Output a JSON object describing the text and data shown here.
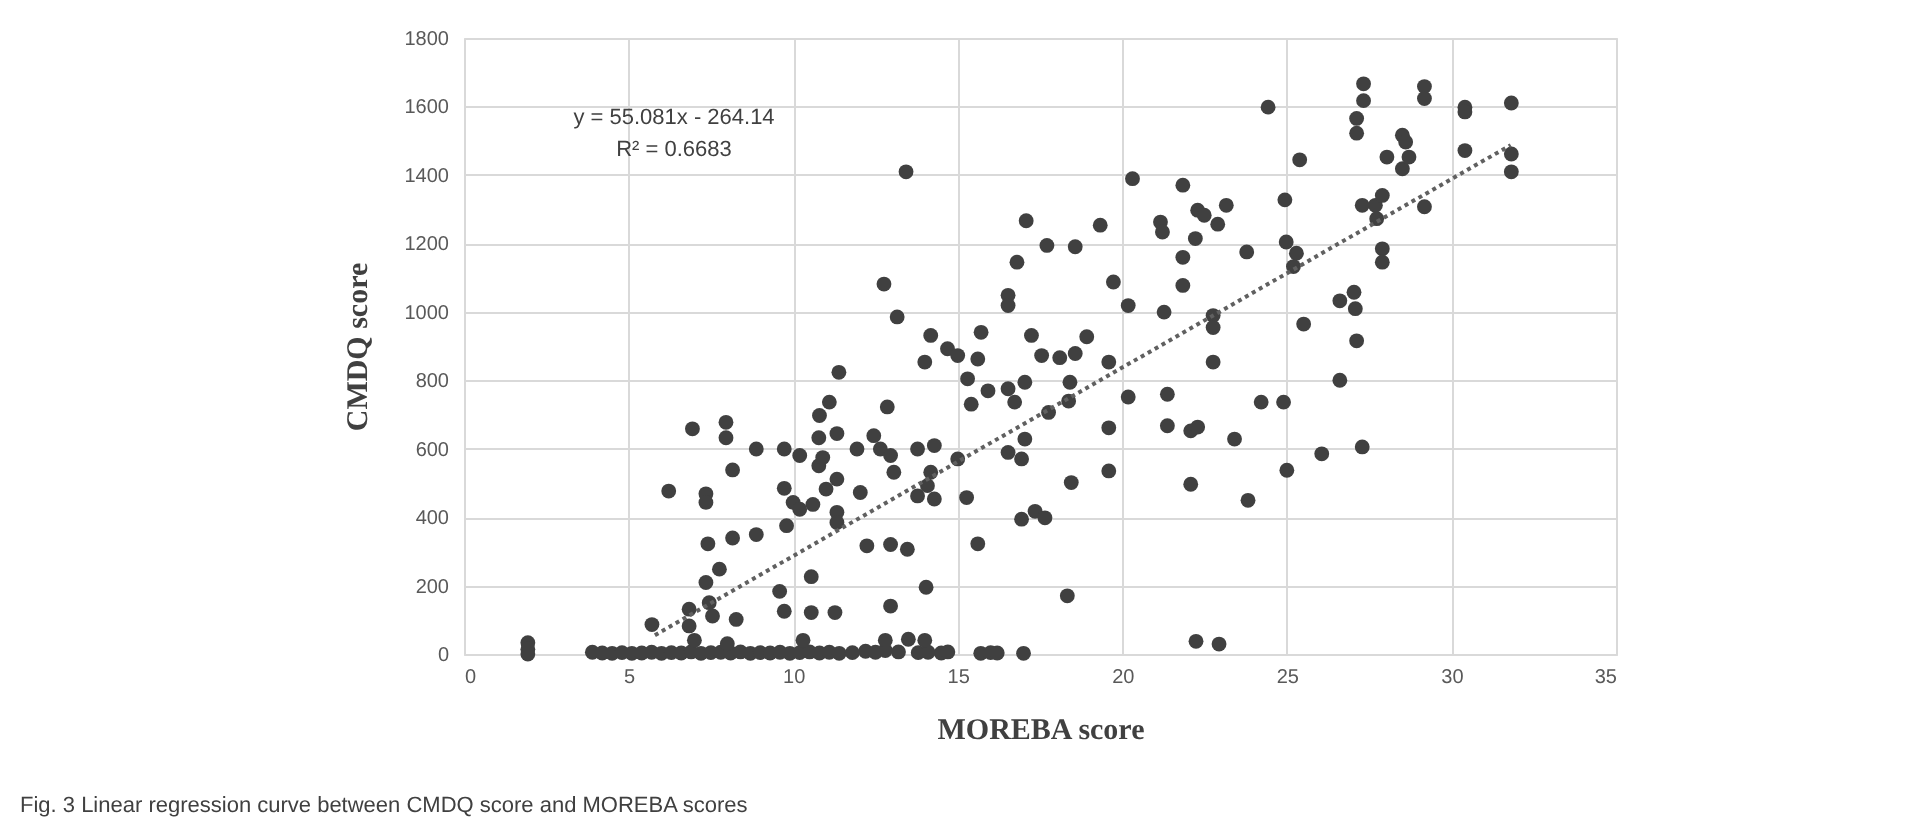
{
  "chart_data": {
    "type": "scatter",
    "xlabel": "MOREBA score",
    "ylabel": "CMDQ score",
    "xlim": [
      0,
      35
    ],
    "xticks": [
      0,
      5,
      10,
      15,
      20,
      25,
      30,
      35
    ],
    "ylim": [
      0,
      1800
    ],
    "yticks": [
      0,
      200,
      400,
      600,
      800,
      1000,
      1200,
      1400,
      1600,
      1800
    ],
    "grid": true,
    "marker": "circle",
    "annotations": [
      "y = 55.081x - 264.14",
      "R² = 0.6683",
      "Fig. 3  Linear regression curve between CMDQ score and MOREBA scores"
    ],
    "series": [
      {
        "type": "scatter",
        "color": "#404040",
        "x": [
          1.94,
          1.94,
          1.94,
          3.9,
          4.2,
          4.5,
          4.8,
          5.1,
          5.4,
          5.7,
          6.0,
          6.3,
          6.6,
          6.9,
          7.2,
          7.5,
          7.8,
          8.1,
          8.4,
          8.7,
          9.0,
          9.3,
          9.6,
          9.9,
          10.2,
          10.5,
          10.8,
          11.1,
          11.4,
          11.8,
          12.2,
          12.5,
          12.8,
          13.2,
          13.5,
          13.8,
          14.1,
          14.5,
          14.7,
          15.7,
          16.0,
          16.2,
          17.0,
          7.0,
          8.0,
          10.3,
          12.8,
          14.0,
          5.71,
          6.84,
          6.84,
          7.45,
          7.35,
          7.76,
          7.55,
          8.27,
          7.41,
          8.16,
          8.88,
          6.22,
          7.35,
          7.35,
          6.94,
          7.96,
          7.96,
          8.16,
          8.88,
          9.59,
          9.73,
          10.55,
          11.27,
          10.55,
          9.8,
          9.73,
          10.0,
          10.2,
          10.6,
          9.73,
          10.2,
          10.78,
          11.33,
          10.78,
          11.0,
          11.33,
          10.9,
          10.8,
          11.1,
          11.39,
          11.33,
          11.33,
          12.04,
          11.94,
          12.45,
          12.65,
          12.96,
          13.06,
          12.24,
          12.96,
          13.47,
          12.86,
          12.76,
          13.16,
          13.43,
          12.96,
          14.04,
          13.78,
          14.29,
          14.18,
          13.78,
          14.29,
          14.08,
          14.0,
          14.18,
          14.69,
          15.0,
          15.27,
          15.0,
          15.61,
          15.3,
          15.61,
          15.71,
          15.41,
          15.92,
          16.53,
          16.73,
          16.53,
          17.04,
          16.94,
          16.53,
          16.53,
          16.8,
          17.08,
          17.71,
          17.04,
          17.24,
          17.55,
          17.76,
          16.94,
          17.35,
          17.65,
          18.1,
          18.57,
          18.92,
          18.41,
          18.37,
          18.57,
          19.33,
          19.73,
          19.59,
          19.59,
          19.59,
          18.45,
          18.33,
          20.18,
          20.18,
          20.31,
          21.27,
          21.16,
          21.22,
          21.37,
          21.37,
          21.84,
          21.84,
          21.84,
          22.08,
          22.29,
          22.08,
          22.22,
          22.29,
          22.49,
          22.9,
          23.16,
          22.76,
          22.76,
          22.76,
          22.24,
          22.94,
          23.41,
          23.78,
          23.82,
          24.22,
          24.9,
          24.43,
          24.94,
          24.98,
          25.29,
          25.2,
          25.0,
          25.39,
          25.51,
          26.06,
          26.61,
          26.61,
          27.04,
          27.08,
          27.12,
          27.29,
          27.12,
          27.12,
          27.33,
          27.33,
          27.29,
          27.69,
          27.9,
          27.73,
          27.9,
          27.9,
          28.04,
          28.51,
          28.61,
          28.51,
          28.71,
          29.18,
          29.18,
          29.18,
          30.41,
          30.41,
          30.41,
          31.82,
          31.82,
          31.82
        ],
        "values": [
          33,
          14,
          0,
          5,
          3,
          2,
          4,
          2,
          3,
          5,
          2,
          4,
          3,
          6,
          2,
          4,
          5,
          3,
          6,
          2,
          4,
          3,
          5,
          2,
          4,
          6,
          3,
          5,
          2,
          4,
          8,
          5,
          10,
          6,
          43,
          4,
          5,
          3,
          6,
          2,
          4,
          3,
          2,
          40,
          30,
          40,
          40,
          40,
          86,
          82,
          131,
          150,
          209,
          248,
          111,
          101,
          322,
          339,
          349,
          476,
          468,
          443,
          658,
          677,
          632,
          538,
          599,
          183,
          125,
          121,
          121,
          226,
          375,
          484,
          443,
          423,
          437,
          599,
          580,
          632,
          644,
          550,
          482,
          511,
          574,
          697,
          736,
          823,
          414,
          384,
          472,
          599,
          638,
          599,
          580,
          531,
          316,
          320,
          306,
          722,
          1081,
          985,
          1409,
          140,
          195,
          599,
          609,
          531,
          462,
          453,
          492,
          853,
          931,
          892,
          872,
          457,
          570,
          322,
          804,
          862,
          940,
          730,
          769,
          775,
          736,
          589,
          628,
          570,
          1048,
          1018,
          1145,
          1266,
          1194,
          794,
          931,
          872,
          706,
          394,
          417,
          398,
          866,
          878,
          927,
          794,
          739,
          1190,
          1253,
          1087,
          853,
          661,
          535,
          501,
          170,
          1018,
          751,
          1389,
          999,
          1262,
          1233,
          759,
          667,
          1370,
          1159,
          1077,
          652,
          663,
          496,
          1214,
          1297,
          1282,
          1256,
          1311,
          989,
          954,
          853,
          37,
          29,
          628,
          1175,
          449,
          736,
          736,
          1598,
          1327,
          1204,
          1171,
          1132,
          537,
          1444,
          964,
          585,
          1032,
          800,
          1057,
          1009,
          915,
          605,
          1565,
          1522,
          1666,
          1617,
          1311,
          1311,
          1340,
          1272,
          1184,
          1145,
          1452,
          1516,
          1496,
          1418,
          1452,
          1307,
          1658,
          1623,
          1598,
          1584,
          1471,
          1610,
          1461,
          1409
        ]
      },
      {
        "type": "line",
        "color": "#606060",
        "line_style": "dotted",
        "marker": "none",
        "x": [
          5.8,
          31.8
        ],
        "values": [
          55,
          1487
        ]
      }
    ]
  }
}
